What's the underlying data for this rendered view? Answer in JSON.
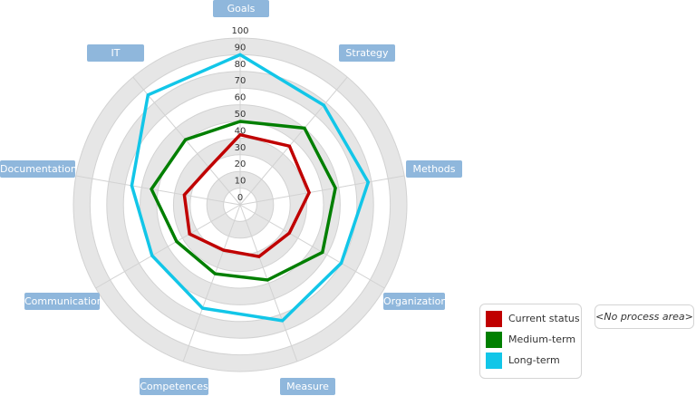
{
  "chart_data": {
    "type": "radar",
    "title": "",
    "categories": [
      "Goals",
      "Strategy",
      "Methods",
      "Organization",
      "Measure",
      "Competences",
      "Communication",
      "Documentation",
      "IT"
    ],
    "radial_ticks": [
      "0",
      "10",
      "20",
      "30",
      "40",
      "50",
      "60",
      "70",
      "80",
      "90",
      "100"
    ],
    "rlim": [
      0,
      100
    ],
    "series": [
      {
        "name": "Current status",
        "color": "#c00000",
        "values": [
          42,
          46,
          42,
          34,
          33,
          29,
          35,
          34,
          29
        ]
      },
      {
        "name": "Medium-term",
        "color": "#007f00",
        "values": [
          50,
          60,
          58,
          57,
          48,
          44,
          44,
          54,
          51
        ]
      },
      {
        "name": "Long-term",
        "color": "#12c6e8",
        "values": [
          90,
          78,
          78,
          70,
          74,
          66,
          61,
          66,
          86
        ]
      }
    ],
    "legend_position": "bottom-right"
  },
  "labels": {
    "goals": "Goals",
    "strategy": "Strategy",
    "methods": "Methods",
    "organization": "Organization",
    "measure": "Measure",
    "competences": "Competences",
    "communication": "Communication",
    "documentation": "Documentation",
    "it": "IT"
  },
  "legend": {
    "items": [
      {
        "label": "Current status",
        "color": "#c00000"
      },
      {
        "label": "Medium-term",
        "color": "#007f00"
      },
      {
        "label": "Long-term",
        "color": "#12c6e8"
      }
    ]
  },
  "process_area": {
    "label": "<No process area>"
  }
}
